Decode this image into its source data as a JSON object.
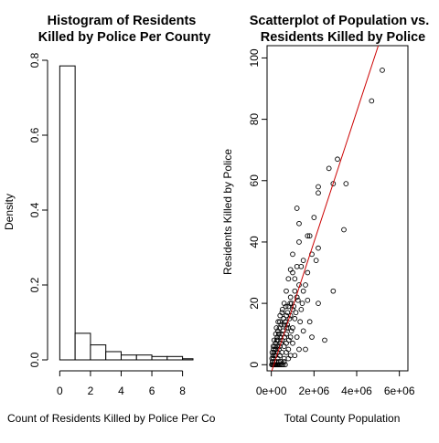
{
  "chart_data": [
    {
      "type": "bar",
      "title_lines": [
        "Histogram of Residents",
        "Killed by Police Per County"
      ],
      "xlabel": "Count of Residents Killed by Police Per Co",
      "ylabel": "Density",
      "bin_width": 1,
      "bins": [
        {
          "x0": 0,
          "x1": 1,
          "density": 0.785
        },
        {
          "x0": 1,
          "x1": 2,
          "density": 0.071
        },
        {
          "x0": 2,
          "x1": 3,
          "density": 0.04
        },
        {
          "x0": 3,
          "x1": 4,
          "density": 0.022
        },
        {
          "x0": 4,
          "x1": 5,
          "density": 0.013
        },
        {
          "x0": 5,
          "x1": 6,
          "density": 0.013
        },
        {
          "x0": 6,
          "x1": 7,
          "density": 0.009
        },
        {
          "x0": 7,
          "x1": 8,
          "density": 0.009
        },
        {
          "x0": 8,
          "x1": 9,
          "density": 0.003
        }
      ],
      "xlim": [
        -0.2,
        8.5
      ],
      "ylim": [
        0,
        0.8
      ],
      "xticks": [
        0,
        2,
        4,
        6,
        8
      ],
      "xtick_labels": [
        "0",
        "2",
        "4",
        "6",
        "8"
      ],
      "yticks": [
        0,
        0.2,
        0.4,
        0.6,
        0.8
      ],
      "ytick_labels": [
        "0.0",
        "0.2",
        "0.4",
        "0.6",
        "0.8"
      ],
      "grid": false
    },
    {
      "type": "scatter",
      "title_lines": [
        "Scatterplot of Population vs.",
        "Residents Killed by Police"
      ],
      "xlabel": "Total County Population",
      "ylabel": "Residents Killed by Police",
      "xlim": [
        -200000,
        6400000
      ],
      "ylim": [
        -2,
        104
      ],
      "xticks": [
        0,
        2000000,
        4000000,
        6000000
      ],
      "xtick_labels": [
        "0e+00",
        "2e+06",
        "4e+06",
        "6e+06"
      ],
      "yticks": [
        0,
        20,
        40,
        60,
        80,
        100
      ],
      "ytick_labels": [
        "0",
        "20",
        "40",
        "60",
        "80",
        "100"
      ],
      "regression_line": {
        "intercept": -2.5,
        "slope": 2.125e-05,
        "color": "#cc0000"
      },
      "point_color": "#000000",
      "grid": false,
      "points": [
        [
          5200000,
          96
        ],
        [
          4700000,
          86
        ],
        [
          3100000,
          67
        ],
        [
          2700000,
          64
        ],
        [
          3500000,
          59
        ],
        [
          2900000,
          59
        ],
        [
          2200000,
          58
        ],
        [
          2200000,
          56
        ],
        [
          1200000,
          51
        ],
        [
          2000000,
          48
        ],
        [
          1300000,
          46
        ],
        [
          3400000,
          44
        ],
        [
          1700000,
          42
        ],
        [
          1800000,
          42
        ],
        [
          1300000,
          40
        ],
        [
          2200000,
          38
        ],
        [
          1900000,
          36
        ],
        [
          1000000,
          36
        ],
        [
          1500000,
          34
        ],
        [
          2100000,
          34
        ],
        [
          1200000,
          32
        ],
        [
          1400000,
          32
        ],
        [
          900000,
          31
        ],
        [
          1000000,
          30
        ],
        [
          1700000,
          30
        ],
        [
          800000,
          28
        ],
        [
          1100000,
          28
        ],
        [
          1300000,
          26
        ],
        [
          2900000,
          24
        ],
        [
          1500000,
          24
        ],
        [
          700000,
          24
        ],
        [
          900000,
          22
        ],
        [
          1200000,
          22
        ],
        [
          1700000,
          21
        ],
        [
          2200000,
          20
        ],
        [
          600000,
          20
        ],
        [
          800000,
          19
        ],
        [
          1000000,
          18
        ],
        [
          1400000,
          18
        ],
        [
          500000,
          17
        ],
        [
          700000,
          16
        ],
        [
          900000,
          16
        ],
        [
          1100000,
          15
        ],
        [
          1800000,
          14
        ],
        [
          400000,
          14
        ],
        [
          600000,
          13
        ],
        [
          800000,
          12
        ],
        [
          1000000,
          12
        ],
        [
          1500000,
          11
        ],
        [
          300000,
          11
        ],
        [
          500000,
          10
        ],
        [
          700000,
          10
        ],
        [
          900000,
          9
        ],
        [
          1200000,
          9
        ],
        [
          1900000,
          9
        ],
        [
          300000,
          8
        ],
        [
          500000,
          8
        ],
        [
          2500000,
          8
        ],
        [
          700000,
          7
        ],
        [
          1000000,
          7
        ],
        [
          200000,
          7
        ],
        [
          400000,
          6
        ],
        [
          600000,
          6
        ],
        [
          800000,
          5
        ],
        [
          1300000,
          5
        ],
        [
          1600000,
          5
        ],
        [
          100000,
          5
        ],
        [
          300000,
          4
        ],
        [
          500000,
          4
        ],
        [
          700000,
          4
        ],
        [
          900000,
          3
        ],
        [
          1100000,
          3
        ],
        [
          200000,
          3
        ],
        [
          400000,
          3
        ],
        [
          600000,
          2
        ],
        [
          100000,
          2
        ],
        [
          300000,
          2
        ],
        [
          800000,
          2
        ],
        [
          50000,
          1
        ],
        [
          150000,
          1
        ],
        [
          250000,
          1
        ],
        [
          350000,
          1
        ],
        [
          450000,
          1
        ],
        [
          600000,
          1
        ],
        [
          20000,
          0
        ],
        [
          60000,
          0
        ],
        [
          100000,
          0
        ],
        [
          140000,
          0
        ],
        [
          180000,
          0
        ],
        [
          220000,
          0
        ],
        [
          260000,
          0
        ],
        [
          300000,
          0
        ],
        [
          350000,
          0
        ],
        [
          400000,
          0
        ],
        [
          480000,
          0
        ],
        [
          550000,
          0
        ],
        [
          650000,
          0
        ],
        [
          30000,
          2
        ],
        [
          80000,
          3
        ],
        [
          120000,
          4
        ],
        [
          160000,
          6
        ],
        [
          200000,
          5
        ],
        [
          250000,
          8
        ],
        [
          280000,
          9
        ],
        [
          350000,
          10
        ],
        [
          380000,
          12
        ],
        [
          420000,
          9
        ],
        [
          450000,
          7
        ],
        [
          550000,
          11
        ],
        [
          650000,
          14
        ],
        [
          750000,
          13
        ],
        [
          850000,
          15
        ],
        [
          950000,
          20
        ],
        [
          1050000,
          19
        ],
        [
          1150000,
          17
        ],
        [
          1250000,
          21
        ],
        [
          1350000,
          14
        ],
        [
          1450000,
          20
        ],
        [
          1600000,
          26
        ],
        [
          1100000,
          24
        ],
        [
          40000,
          4
        ],
        [
          90000,
          6
        ],
        [
          130000,
          8
        ],
        [
          170000,
          3
        ],
        [
          210000,
          10
        ],
        [
          240000,
          12
        ],
        [
          270000,
          6
        ],
        [
          320000,
          14
        ],
        [
          360000,
          5
        ],
        [
          410000,
          16
        ],
        [
          460000,
          13
        ],
        [
          520000,
          18
        ],
        [
          580000,
          15
        ],
        [
          620000,
          9
        ],
        [
          680000,
          19
        ],
        [
          720000,
          12
        ],
        [
          760000,
          17
        ],
        [
          820000,
          8
        ],
        [
          880000,
          20
        ],
        [
          940000,
          11
        ]
      ]
    }
  ]
}
